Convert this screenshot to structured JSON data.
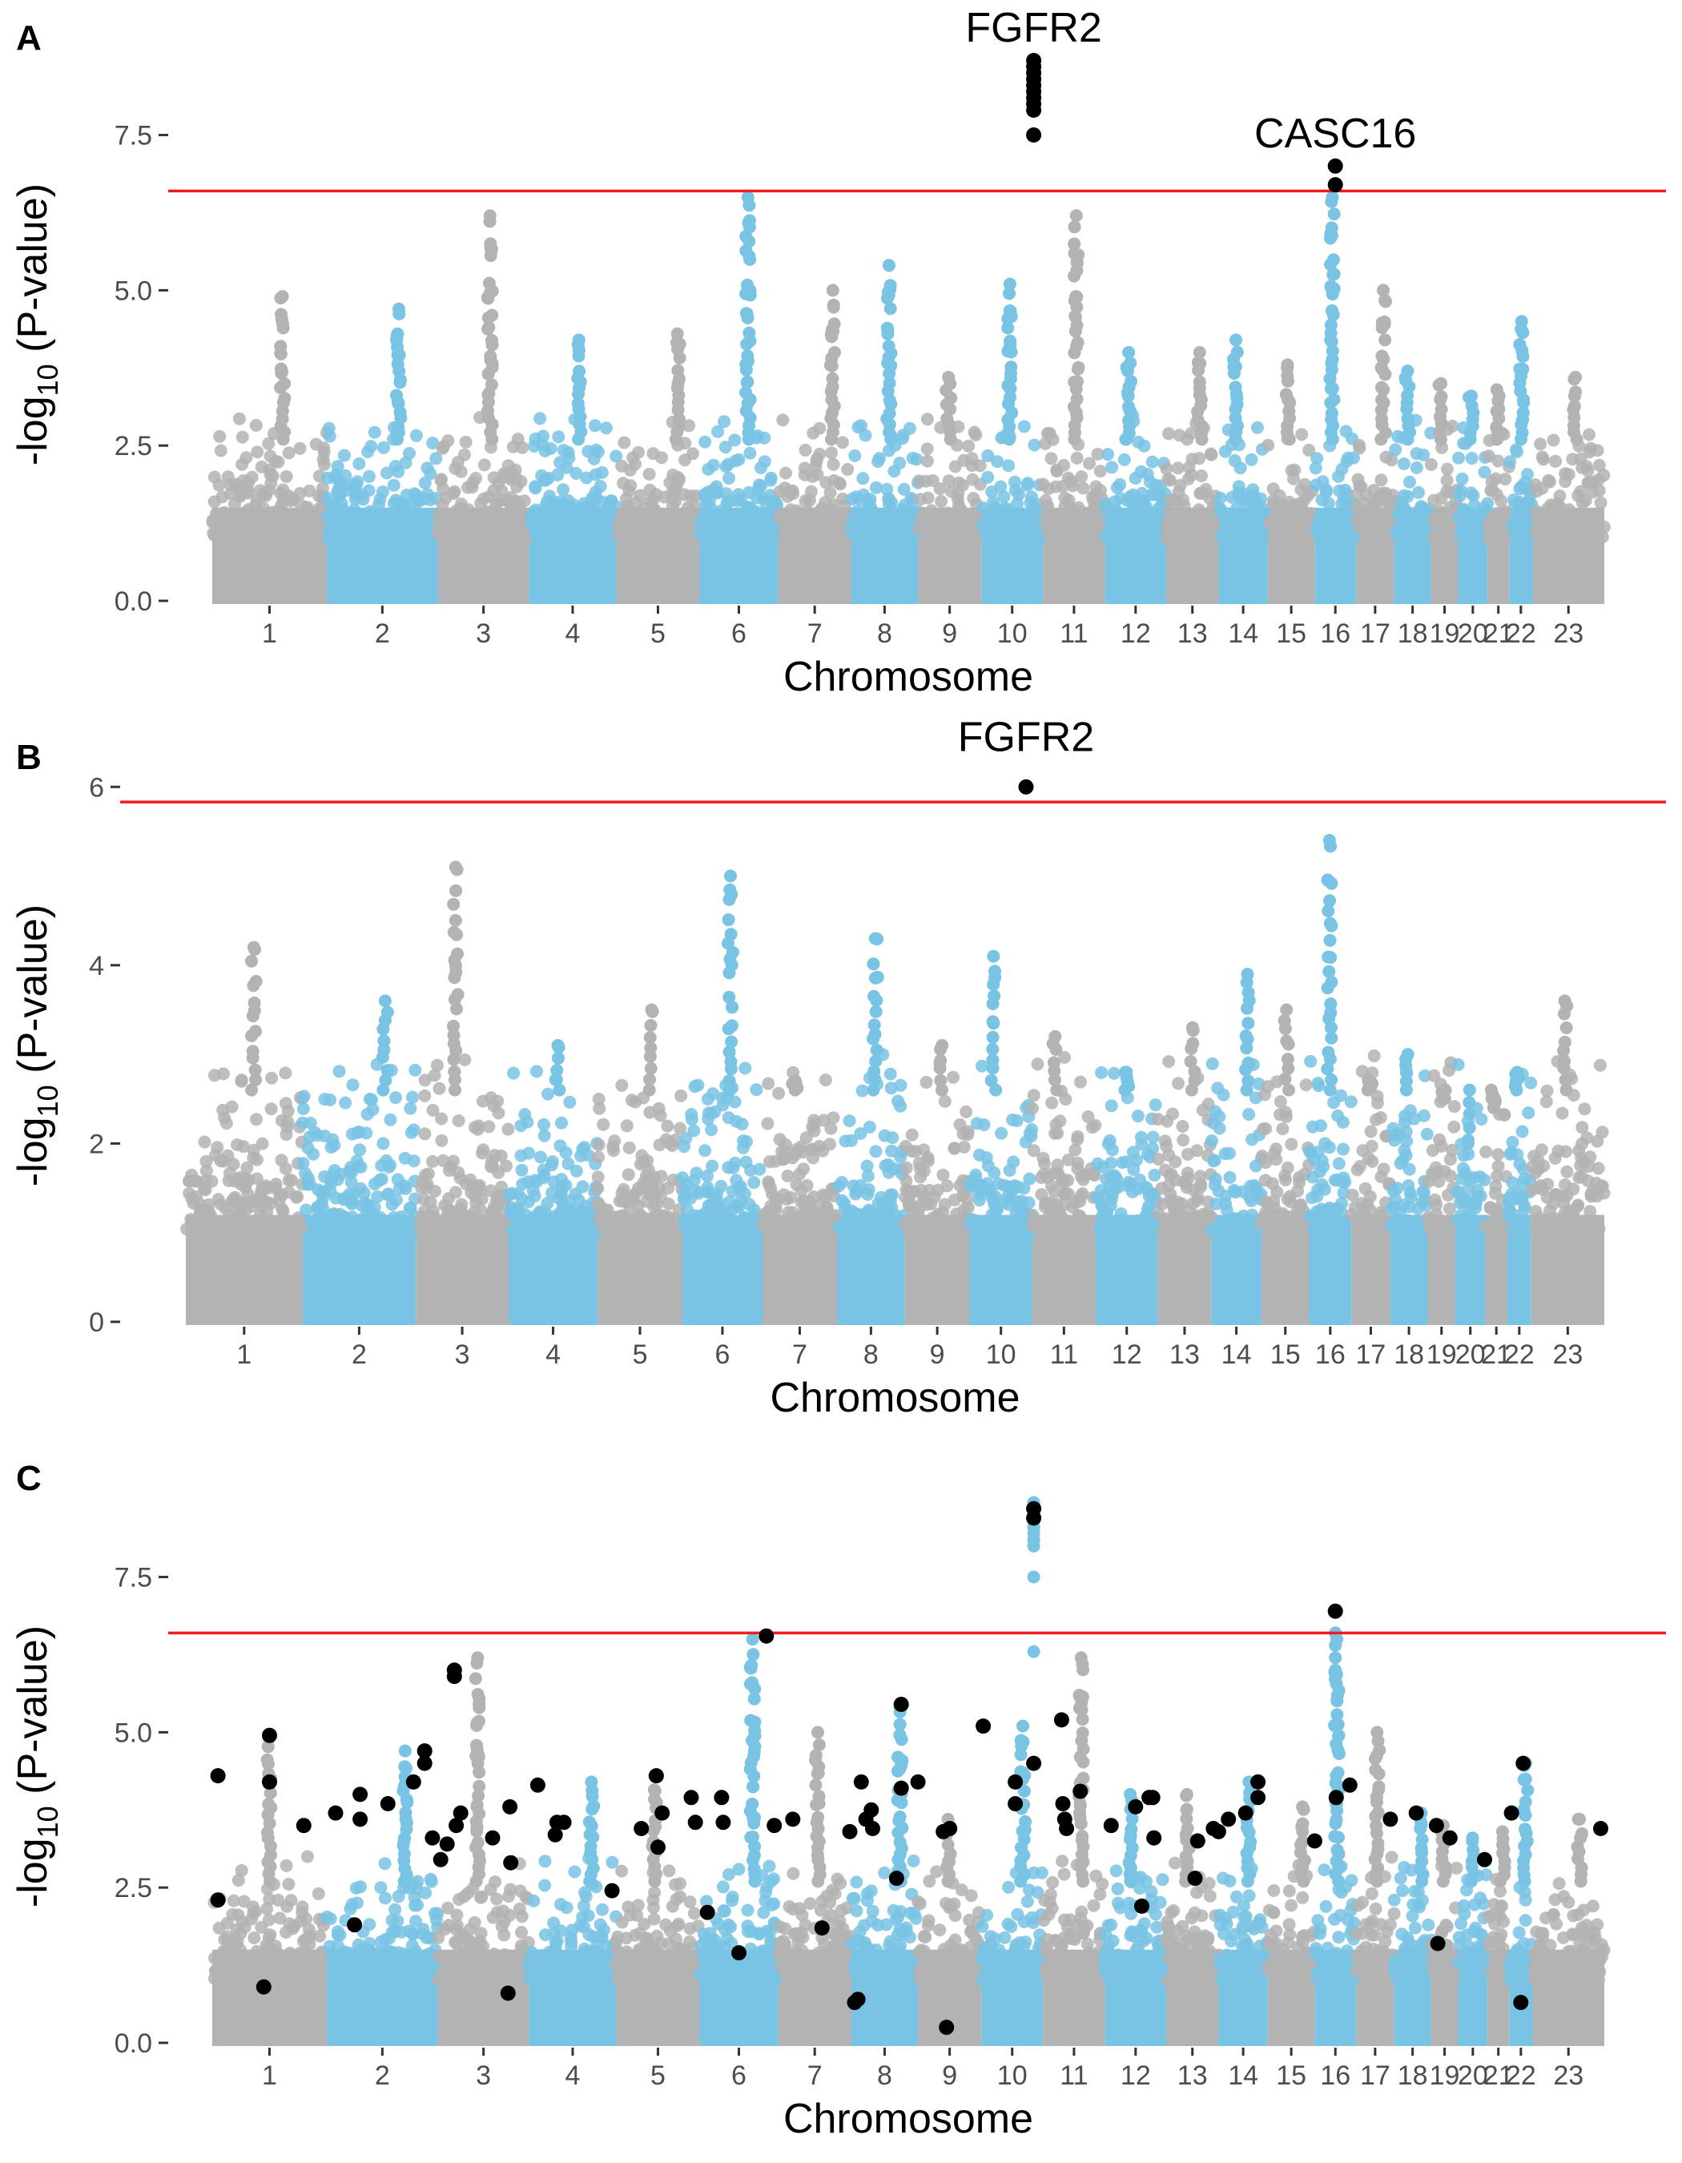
{
  "colors": {
    "even_chromosome": "#b3b3b3",
    "odd_chromosome": "#79c3e4",
    "highlight": "#000000",
    "threshold": "#ee1c1c",
    "tick_text": "#4d4d4d"
  },
  "chart_data": [
    {
      "panel_label": "A",
      "type": "scatter",
      "subtype": "manhattan",
      "xlabel": "Chromosome",
      "ylabel": "-log10 (P-value)",
      "ylim": [
        0,
        8.9
      ],
      "yticks": [
        0,
        2.5,
        5,
        7.5
      ],
      "ytick_labels": [
        "0.0",
        "2.5",
        "5.0",
        "7.5"
      ],
      "threshold": 6.6,
      "grid": false,
      "chromosomes": [
        "1",
        "2",
        "3",
        "4",
        "5",
        "6",
        "7",
        "8",
        "9",
        "10",
        "11",
        "12",
        "13",
        "14",
        "15",
        "16",
        "17",
        "18",
        "19",
        "20",
        "21",
        "22",
        "23"
      ],
      "chromosome_peaks": [
        4.9,
        4.7,
        6.2,
        4.2,
        4.3,
        6.5,
        5.0,
        5.4,
        3.6,
        5.1,
        6.2,
        4.0,
        4.0,
        4.2,
        3.8,
        6.5,
        5.0,
        3.7,
        3.5,
        3.3,
        3.4,
        4.5,
        3.6
      ],
      "highlighted_points": [
        {
          "chromosome": "10",
          "position": 0.85,
          "values": [
            8.7,
            8.6,
            8.5,
            8.4,
            8.3,
            8.2,
            8.1,
            8.0,
            7.9,
            7.5
          ]
        },
        {
          "chromosome": "16",
          "position": 0.5,
          "values": [
            7.0,
            6.7
          ]
        }
      ],
      "annotations": [
        {
          "text": "FGFR2",
          "chromosome": "10",
          "position": 0.85,
          "value": 9.0
        },
        {
          "text": "CASC16",
          "chromosome": "16",
          "position": 0.5,
          "value": 7.3
        }
      ]
    },
    {
      "panel_label": "B",
      "type": "scatter",
      "subtype": "manhattan",
      "xlabel": "Chromosome",
      "ylabel": "-log10 (P-value)",
      "ylim": [
        0,
        6.2
      ],
      "yticks": [
        0,
        2,
        4,
        6
      ],
      "ytick_labels": [
        "0",
        "2",
        "4",
        "6"
      ],
      "threshold": 5.83,
      "grid": false,
      "chromosomes": [
        "1",
        "2",
        "3",
        "4",
        "5",
        "6",
        "7",
        "8",
        "9",
        "10",
        "11",
        "12",
        "13",
        "14",
        "15",
        "16",
        "17",
        "18",
        "19",
        "20",
        "21",
        "22",
        "23"
      ],
      "chromosome_peaks": [
        4.2,
        3.6,
        5.1,
        3.1,
        3.5,
        5.0,
        2.7,
        4.3,
        3.1,
        4.1,
        3.2,
        2.8,
        3.3,
        3.9,
        3.5,
        5.4,
        2.7,
        3.0,
        2.5,
        2.0,
        2.4,
        2.8,
        3.6
      ],
      "highlighted_points": [
        {
          "chromosome": "10",
          "position": 0.9,
          "values": [
            6.0
          ]
        }
      ],
      "annotations": [
        {
          "text": "FGFR2",
          "chromosome": "10",
          "position": 0.9,
          "value": 6.4
        }
      ]
    },
    {
      "panel_label": "C",
      "type": "scatter",
      "subtype": "manhattan",
      "xlabel": "Chromosome",
      "ylabel": "-log10 (P-value)",
      "ylim": [
        0,
        8.9
      ],
      "yticks": [
        0,
        2.5,
        5,
        7.5
      ],
      "ytick_labels": [
        "0.0",
        "2.5",
        "5.0",
        "7.5"
      ],
      "threshold": 6.6,
      "grid": false,
      "chromosomes": [
        "1",
        "2",
        "3",
        "4",
        "5",
        "6",
        "7",
        "8",
        "9",
        "10",
        "11",
        "12",
        "13",
        "14",
        "15",
        "16",
        "17",
        "18",
        "19",
        "20",
        "21",
        "22",
        "23"
      ],
      "chromosome_peaks": [
        4.9,
        4.7,
        6.2,
        4.2,
        4.3,
        6.5,
        5.0,
        5.4,
        3.6,
        5.1,
        6.2,
        4.0,
        4.0,
        4.2,
        3.8,
        6.5,
        5.0,
        3.7,
        3.5,
        3.3,
        3.4,
        4.5,
        3.6
      ],
      "light_highlight_points": [
        {
          "chromosome": "10",
          "position": 0.85,
          "values": [
            8.7,
            8.6,
            8.5,
            8.4,
            8.3,
            8.2,
            8.1,
            8.0,
            7.5,
            6.3
          ]
        },
        {
          "chromosome": "16",
          "position": 0.5,
          "values": [
            6.6,
            6.4,
            6.2,
            6.0,
            5.1,
            3.9
          ]
        }
      ],
      "highlighted_points": [
        {
          "chromosome": "1",
          "position": 0.05,
          "values": [
            4.3,
            2.3
          ]
        },
        {
          "chromosome": "1",
          "position": 0.45,
          "values": [
            0.9
          ]
        },
        {
          "chromosome": "1",
          "position": 0.5,
          "values": [
            4.95,
            4.2
          ]
        },
        {
          "chromosome": "1",
          "position": 0.8,
          "values": [
            3.5
          ]
        },
        {
          "chromosome": "2",
          "position": 0.08,
          "values": [
            3.7
          ]
        },
        {
          "chromosome": "2",
          "position": 0.25,
          "values": [
            1.9
          ]
        },
        {
          "chromosome": "2",
          "position": 0.3,
          "values": [
            4.0,
            3.6
          ]
        },
        {
          "chromosome": "2",
          "position": 0.55,
          "values": [
            3.85
          ]
        },
        {
          "chromosome": "2",
          "position": 0.78,
          "values": [
            4.2
          ]
        },
        {
          "chromosome": "2",
          "position": 0.88,
          "values": [
            4.7,
            4.5
          ]
        },
        {
          "chromosome": "2",
          "position": 0.95,
          "values": [
            3.3
          ]
        },
        {
          "chromosome": "3",
          "position": 0.03,
          "values": [
            2.95
          ]
        },
        {
          "chromosome": "3",
          "position": 0.1,
          "values": [
            3.2
          ]
        },
        {
          "chromosome": "3",
          "position": 0.18,
          "values": [
            6.0,
            5.9
          ]
        },
        {
          "chromosome": "3",
          "position": 0.2,
          "values": [
            3.5
          ]
        },
        {
          "chromosome": "3",
          "position": 0.25,
          "values": [
            3.7
          ]
        },
        {
          "chromosome": "3",
          "position": 0.6,
          "values": [
            3.3
          ]
        },
        {
          "chromosome": "3",
          "position": 0.77,
          "values": [
            0.8
          ]
        },
        {
          "chromosome": "3",
          "position": 0.79,
          "values": [
            3.8
          ]
        },
        {
          "chromosome": "3",
          "position": 0.8,
          "values": [
            2.9
          ]
        },
        {
          "chromosome": "4",
          "position": 0.1,
          "values": [
            4.15
          ]
        },
        {
          "chromosome": "4",
          "position": 0.3,
          "values": [
            3.35
          ]
        },
        {
          "chromosome": "4",
          "position": 0.32,
          "values": [
            3.55
          ]
        },
        {
          "chromosome": "4",
          "position": 0.4,
          "values": [
            3.55
          ]
        },
        {
          "chromosome": "4",
          "position": 0.95,
          "values": [
            2.45
          ]
        },
        {
          "chromosome": "5",
          "position": 0.3,
          "values": [
            3.45
          ]
        },
        {
          "chromosome": "5",
          "position": 0.48,
          "values": [
            4.3
          ]
        },
        {
          "chromosome": "5",
          "position": 0.5,
          "values": [
            3.15
          ]
        },
        {
          "chromosome": "5",
          "position": 0.55,
          "values": [
            3.7
          ]
        },
        {
          "chromosome": "5",
          "position": 0.9,
          "values": [
            3.95
          ]
        },
        {
          "chromosome": "5",
          "position": 0.95,
          "values": [
            3.55
          ]
        },
        {
          "chromosome": "6",
          "position": 0.1,
          "values": [
            2.1
          ]
        },
        {
          "chromosome": "6",
          "position": 0.28,
          "values": [
            3.95
          ]
        },
        {
          "chromosome": "6",
          "position": 0.3,
          "values": [
            3.55
          ]
        },
        {
          "chromosome": "6",
          "position": 0.5,
          "values": [
            1.45
          ]
        },
        {
          "chromosome": "6",
          "position": 0.85,
          "values": [
            6.55
          ]
        },
        {
          "chromosome": "6",
          "position": 0.95,
          "values": [
            3.5
          ]
        },
        {
          "chromosome": "7",
          "position": 0.2,
          "values": [
            3.6
          ]
        },
        {
          "chromosome": "7",
          "position": 0.6,
          "values": [
            1.85
          ]
        },
        {
          "chromosome": "7",
          "position": 0.98,
          "values": [
            3.4
          ]
        },
        {
          "chromosome": "8",
          "position": 0.05,
          "values": [
            0.65
          ]
        },
        {
          "chromosome": "8",
          "position": 0.1,
          "values": [
            0.7
          ]
        },
        {
          "chromosome": "8",
          "position": 0.15,
          "values": [
            4.2
          ]
        },
        {
          "chromosome": "8",
          "position": 0.22,
          "values": [
            3.6
          ]
        },
        {
          "chromosome": "8",
          "position": 0.3,
          "values": [
            3.75
          ]
        },
        {
          "chromosome": "8",
          "position": 0.32,
          "values": [
            3.45
          ]
        },
        {
          "chromosome": "8",
          "position": 0.68,
          "values": [
            2.65
          ]
        },
        {
          "chromosome": "8",
          "position": 0.75,
          "values": [
            5.45,
            4.1
          ]
        },
        {
          "chromosome": "8",
          "position": 1.0,
          "values": [
            4.2
          ]
        },
        {
          "chromosome": "9",
          "position": 0.4,
          "values": [
            3.4
          ]
        },
        {
          "chromosome": "9",
          "position": 0.45,
          "values": [
            0.25
          ]
        },
        {
          "chromosome": "9",
          "position": 0.5,
          "values": [
            3.45
          ]
        },
        {
          "chromosome": "10",
          "position": 0.03,
          "values": [
            5.1
          ]
        },
        {
          "chromosome": "10",
          "position": 0.55,
          "values": [
            4.2,
            3.85
          ]
        },
        {
          "chromosome": "10",
          "position": 0.85,
          "values": [
            8.6,
            8.45,
            4.5
          ]
        },
        {
          "chromosome": "11",
          "position": 0.3,
          "values": [
            5.2
          ]
        },
        {
          "chromosome": "11",
          "position": 0.32,
          "values": [
            3.85
          ]
        },
        {
          "chromosome": "11",
          "position": 0.35,
          "values": [
            3.6
          ]
        },
        {
          "chromosome": "11",
          "position": 0.38,
          "values": [
            3.45
          ]
        },
        {
          "chromosome": "11",
          "position": 0.6,
          "values": [
            4.05
          ]
        },
        {
          "chromosome": "12",
          "position": 0.1,
          "values": [
            3.5
          ]
        },
        {
          "chromosome": "12",
          "position": 0.5,
          "values": [
            3.8
          ]
        },
        {
          "chromosome": "12",
          "position": 0.6,
          "values": [
            2.2
          ]
        },
        {
          "chromosome": "12",
          "position": 0.72,
          "values": [
            3.95
          ]
        },
        {
          "chromosome": "12",
          "position": 0.78,
          "values": [
            3.95
          ]
        },
        {
          "chromosome": "12",
          "position": 0.8,
          "values": [
            3.3
          ]
        },
        {
          "chromosome": "13",
          "position": 0.55,
          "values": [
            2.65
          ]
        },
        {
          "chromosome": "13",
          "position": 0.6,
          "values": [
            3.25
          ]
        },
        {
          "chromosome": "13",
          "position": 0.9,
          "values": [
            3.45
          ]
        },
        {
          "chromosome": "13",
          "position": 1.0,
          "values": [
            3.4
          ]
        },
        {
          "chromosome": "14",
          "position": 0.2,
          "values": [
            3.6
          ]
        },
        {
          "chromosome": "14",
          "position": 0.55,
          "values": [
            3.7
          ]
        },
        {
          "chromosome": "14",
          "position": 0.8,
          "values": [
            4.2,
            3.95
          ]
        },
        {
          "chromosome": "15",
          "position": 1.0,
          "values": [
            3.25
          ]
        },
        {
          "chromosome": "16",
          "position": 0.5,
          "values": [
            6.95
          ]
        },
        {
          "chromosome": "16",
          "position": 0.52,
          "values": [
            3.95
          ]
        },
        {
          "chromosome": "16",
          "position": 0.85,
          "values": [
            4.15
          ]
        },
        {
          "chromosome": "17",
          "position": 0.9,
          "values": [
            3.6
          ]
        },
        {
          "chromosome": "18",
          "position": 0.6,
          "values": [
            3.7
          ]
        },
        {
          "chromosome": "19",
          "position": 0.2,
          "values": [
            3.5
          ]
        },
        {
          "chromosome": "19",
          "position": 0.25,
          "values": [
            1.6
          ]
        },
        {
          "chromosome": "19",
          "position": 0.7,
          "values": [
            3.3
          ]
        },
        {
          "chromosome": "20",
          "position": 0.9,
          "values": [
            2.95
          ]
        },
        {
          "chromosome": "22",
          "position": 0.1,
          "values": [
            3.7
          ]
        },
        {
          "chromosome": "22",
          "position": 0.5,
          "values": [
            0.65
          ]
        },
        {
          "chromosome": "22",
          "position": 0.6,
          "values": [
            4.5
          ]
        },
        {
          "chromosome": "23",
          "position": 0.95,
          "values": [
            3.45
          ]
        }
      ],
      "annotations": []
    }
  ]
}
